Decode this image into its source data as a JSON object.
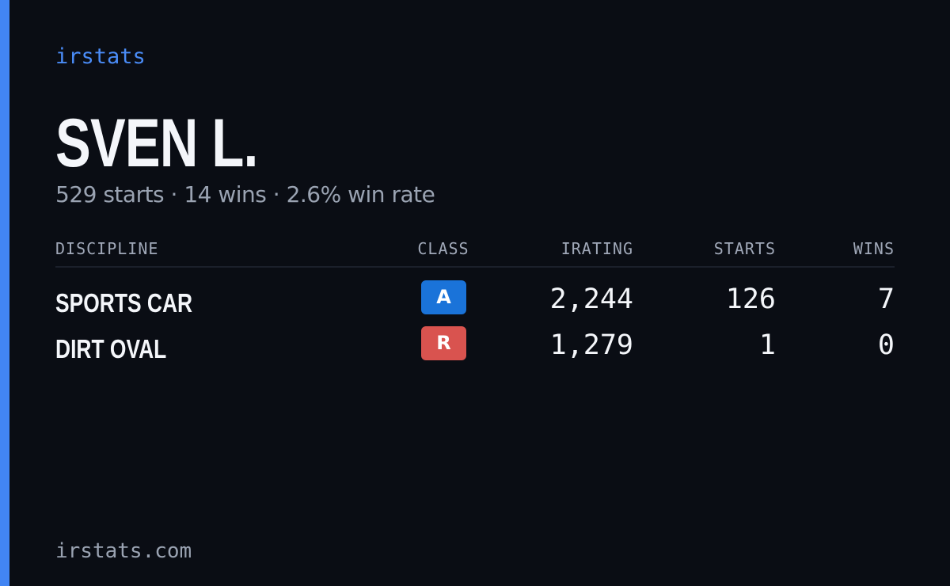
{
  "header": {
    "brand": "irstats",
    "name": "SVEN L.",
    "summary": "529 starts · 14 wins · 2.6% win rate"
  },
  "table": {
    "columns": [
      "DISCIPLINE",
      "CLASS",
      "IRATING",
      "STARTS",
      "WINS"
    ],
    "rows": [
      [
        "SPORTS CAR",
        "A",
        "2,244",
        "126",
        "7"
      ],
      [
        "DIRT OVAL",
        "R",
        "1,279",
        "1",
        "0"
      ]
    ]
  },
  "footer": {
    "url": "irstats.com"
  }
}
